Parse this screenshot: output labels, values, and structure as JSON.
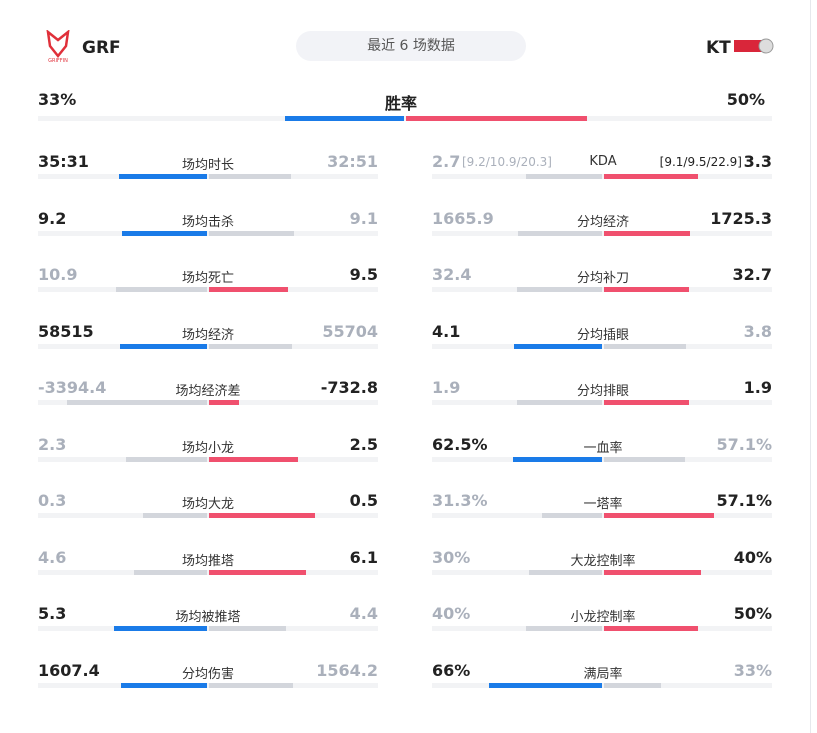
{
  "header": {
    "left_team": "GRF",
    "left_logo_text": "GRIFFIN",
    "filter": "最近 6 场数据",
    "right_team": "KT"
  },
  "win_rate": {
    "label": "胜率",
    "left": "33%",
    "right": "50%"
  },
  "left_stats": [
    {
      "label": "场均时长",
      "left": "35:31",
      "right": "32:51",
      "highlight": "left"
    },
    {
      "label": "场均击杀",
      "left": "9.2",
      "right": "9.1",
      "highlight": "left"
    },
    {
      "label": "场均死亡",
      "left": "10.9",
      "right": "9.5",
      "highlight": "right"
    },
    {
      "label": "场均经济",
      "left": "58515",
      "right": "55704",
      "highlight": "left"
    },
    {
      "label": "场均经济差",
      "left": "-3394.4",
      "right": "-732.8",
      "highlight": "right"
    },
    {
      "label": "场均小龙",
      "left": "2.3",
      "right": "2.5",
      "highlight": "right"
    },
    {
      "label": "场均大龙",
      "left": "0.3",
      "right": "0.5",
      "highlight": "right"
    },
    {
      "label": "场均推塔",
      "left": "4.6",
      "right": "6.1",
      "highlight": "right"
    },
    {
      "label": "场均被推塔",
      "left": "5.3",
      "right": "4.4",
      "highlight": "left"
    },
    {
      "label": "分均伤害",
      "left": "1607.4",
      "right": "1564.2",
      "highlight": "left"
    }
  ],
  "right_stats": [
    {
      "label": "KDA",
      "left": "2.7",
      "left_detail": "[9.2/10.9/20.3]",
      "right": "3.3",
      "right_detail": "[9.1/9.5/22.9]",
      "highlight": "right"
    },
    {
      "label": "分均经济",
      "left": "1665.9",
      "right": "1725.3",
      "highlight": "right"
    },
    {
      "label": "分均补刀",
      "left": "32.4",
      "right": "32.7",
      "highlight": "right"
    },
    {
      "label": "分均插眼",
      "left": "4.1",
      "right": "3.8",
      "highlight": "left"
    },
    {
      "label": "分均排眼",
      "left": "1.9",
      "right": "1.9",
      "highlight": "right"
    },
    {
      "label": "一血率",
      "left": "62.5%",
      "right": "57.1%",
      "highlight": "left"
    },
    {
      "label": "一塔率",
      "left": "31.3%",
      "right": "57.1%",
      "highlight": "right"
    },
    {
      "label": "大龙控制率",
      "left": "30%",
      "right": "40%",
      "highlight": "right"
    },
    {
      "label": "小龙控制率",
      "left": "40%",
      "right": "50%",
      "highlight": "right"
    },
    {
      "label": "满局率",
      "left": "66%",
      "right": "33%",
      "highlight": "left"
    }
  ]
}
